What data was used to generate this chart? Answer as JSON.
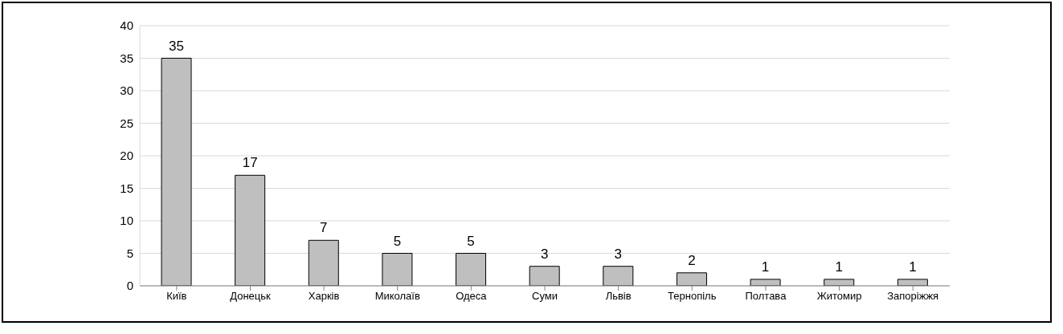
{
  "chart_data": {
    "type": "bar",
    "categories": [
      "Київ",
      "Донецьк",
      "Харків",
      "Миколаїв",
      "Одеса",
      "Суми",
      "Львів",
      "Тернопіль",
      "Полтава",
      "Житомир",
      "Запоріжжя"
    ],
    "values": [
      35,
      17,
      7,
      5,
      5,
      3,
      3,
      2,
      1,
      1,
      1
    ],
    "color": "#bfbfbf",
    "ylim": [
      0,
      40
    ],
    "yticks": [
      0,
      5,
      10,
      15,
      20,
      25,
      30,
      35,
      40
    ],
    "grid": "y",
    "data_labels": true
  }
}
